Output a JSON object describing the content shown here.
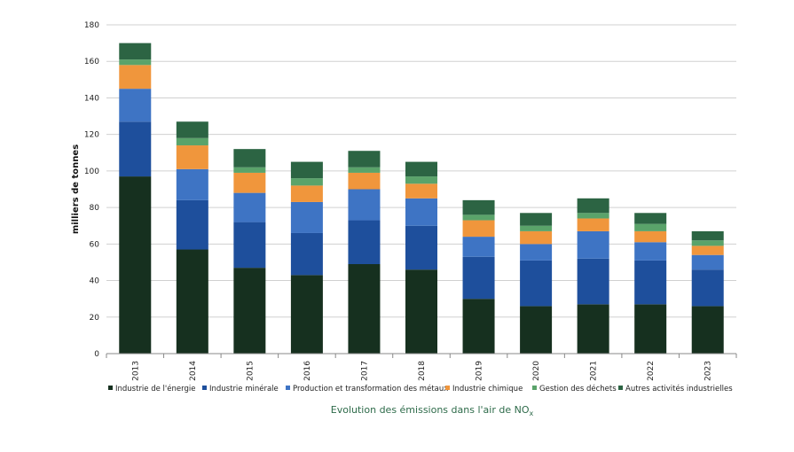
{
  "chart_data": {
    "type": "bar",
    "stacked": true,
    "categories": [
      "2013",
      "2014",
      "2015",
      "2016",
      "2017",
      "2018",
      "2019",
      "2020",
      "2021",
      "2022",
      "2023"
    ],
    "ylabel": "milliers de tonnes",
    "ylim": [
      0,
      180
    ],
    "yticks": [
      0,
      20,
      40,
      60,
      80,
      100,
      120,
      140,
      160,
      180
    ],
    "grid": true,
    "legend_position": "bottom",
    "series": [
      {
        "name": "Industrie de l'énergie",
        "color": "#16301f",
        "values": [
          97,
          57,
          47,
          43,
          49,
          46,
          30,
          26,
          27,
          27,
          26
        ]
      },
      {
        "name": "Industrie minérale",
        "color": "#1e4f9c",
        "values": [
          30,
          27,
          25,
          23,
          24,
          24,
          23,
          25,
          25,
          24,
          20
        ]
      },
      {
        "name": "Production et transformation des métaux",
        "color": "#3e74c4",
        "values": [
          18,
          17,
          16,
          17,
          17,
          15,
          11,
          9,
          15,
          10,
          8
        ]
      },
      {
        "name": "Industrie chimique",
        "color": "#f0963c",
        "values": [
          13,
          13,
          11,
          9,
          9,
          8,
          9,
          7,
          7,
          6,
          5
        ]
      },
      {
        "name": "Gestion des déchets",
        "color": "#5aa36a",
        "values": [
          3,
          4,
          3,
          4,
          3,
          4,
          3,
          3,
          3,
          4,
          3
        ]
      },
      {
        "name": "Autres activités industrielles",
        "color": "#2c6443",
        "values": [
          9,
          9,
          10,
          9,
          9,
          8,
          8,
          7,
          8,
          6,
          5
        ]
      }
    ]
  },
  "caption": {
    "text": "Evolution des émissions dans l'air de NO",
    "subscript": "x"
  }
}
